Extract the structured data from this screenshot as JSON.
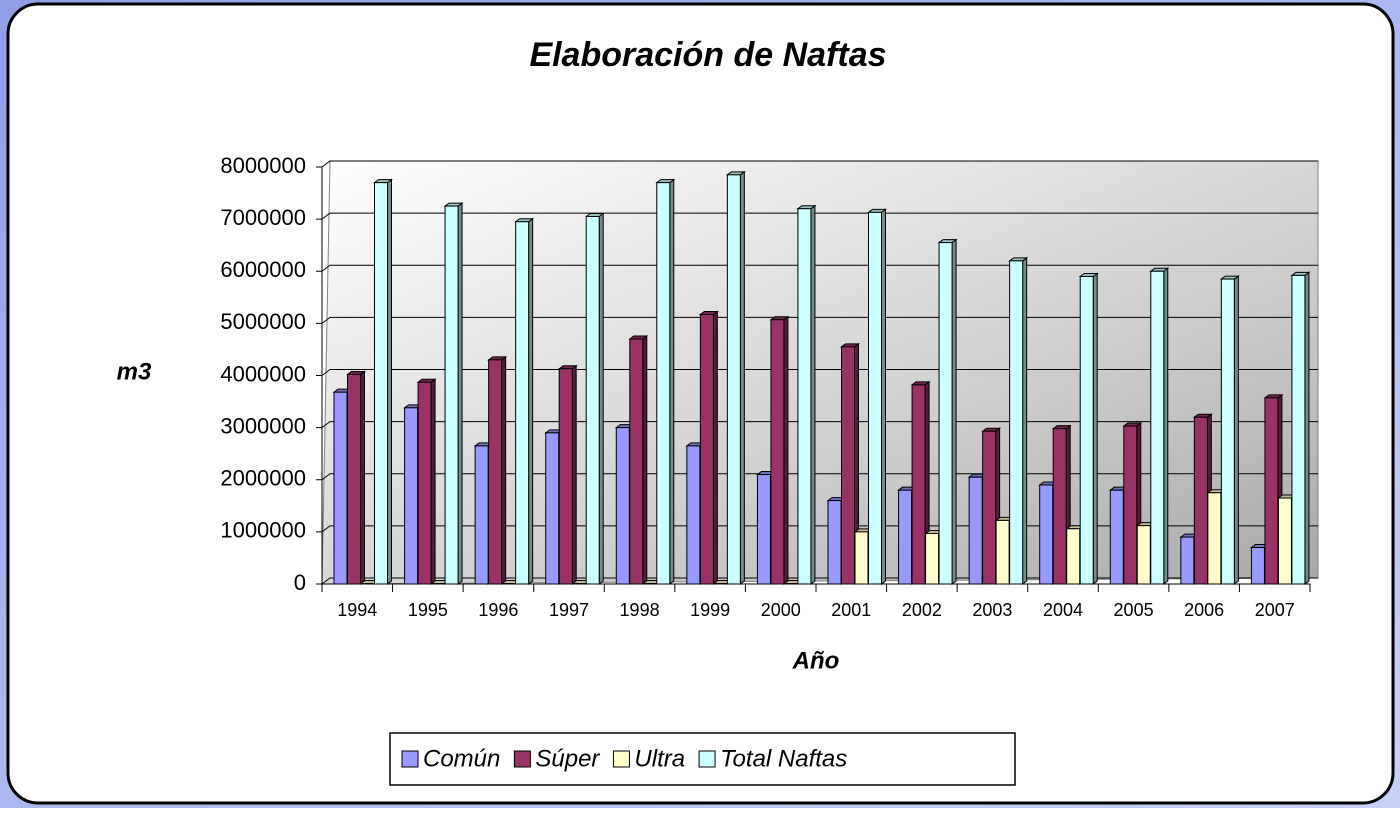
{
  "chart_data": {
    "type": "bar3d",
    "title": "Elaboración de Naftas",
    "x_label": "Año",
    "y_label": "m3",
    "categories": [
      "1994",
      "1995",
      "1996",
      "1997",
      "1998",
      "1999",
      "2000",
      "2001",
      "2002",
      "2003",
      "2004",
      "2005",
      "2006",
      "2007"
    ],
    "series": [
      {
        "name": "Común",
        "color": "#9999ff",
        "values": [
          3680000,
          3380000,
          2650000,
          2900000,
          3000000,
          2650000,
          2100000,
          1600000,
          1800000,
          2050000,
          1900000,
          1800000,
          900000,
          700000
        ]
      },
      {
        "name": "Súper",
        "color": "#993366",
        "values": [
          4020000,
          3870000,
          4300000,
          4130000,
          4700000,
          5170000,
          5070000,
          4550000,
          3820000,
          2930000,
          2980000,
          3030000,
          3200000,
          3570000
        ]
      },
      {
        "name": "Ultra",
        "color": "#ffffcc",
        "values": [
          10000,
          10000,
          10000,
          10000,
          10000,
          10000,
          10000,
          1000000,
          970000,
          1220000,
          1060000,
          1120000,
          1750000,
          1650000
        ]
      },
      {
        "name": "Total Naftas",
        "color": "#ccffff",
        "values": [
          7700000,
          7250000,
          6950000,
          7050000,
          7700000,
          7850000,
          7200000,
          7130000,
          6550000,
          6200000,
          5900000,
          6000000,
          5850000,
          5920000
        ]
      }
    ],
    "ylim": [
      0,
      8000000
    ],
    "yticks": [
      0,
      1000000,
      2000000,
      3000000,
      4000000,
      5000000,
      6000000,
      7000000,
      8000000
    ],
    "grid": true,
    "legend": "bottom"
  }
}
